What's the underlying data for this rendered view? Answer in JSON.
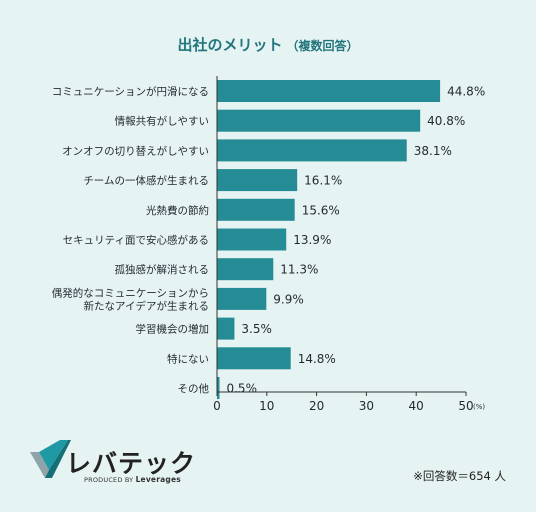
{
  "title_main": "出社のメリット",
  "title_sub": "（複数回答）",
  "footnote": "※回答数＝654 人",
  "logo": {
    "wordmark": "レバテック",
    "tagline_prefix": "PRODUCED BY ",
    "tagline_brand": "Leverages"
  },
  "colors": {
    "bar": "#258b95",
    "title": "#21757c",
    "background": "#e6f3f3"
  },
  "chart_data": {
    "type": "bar",
    "orientation": "horizontal",
    "title": "出社のメリット（複数回答）",
    "categories": [
      "コミュニケーションが円滑になる",
      "情報共有がしやすい",
      "オンオフの切り替えがしやすい",
      "チームの一体感が生まれる",
      "光熱費の節約",
      "セキュリティ面で安心感がある",
      "孤独感が解消される",
      "偶発的なコミュニケーションから\n新たなアイデアが生まれる",
      "学習機会の増加",
      "特にない",
      "その他"
    ],
    "values": [
      44.8,
      40.8,
      38.1,
      16.1,
      15.6,
      13.9,
      11.3,
      9.9,
      3.5,
      14.8,
      0.5
    ],
    "value_labels": [
      "44.8%",
      "40.8%",
      "38.1%",
      "16.1%",
      "15.6%",
      "13.9%",
      "11.3%",
      "9.9%",
      "3.5%",
      "14.8%",
      "0.5%"
    ],
    "xlim": [
      0,
      50
    ],
    "xticks": [
      0,
      10,
      20,
      30,
      40,
      50
    ],
    "xtick_labels": [
      "0",
      "10",
      "20",
      "30",
      "40",
      "50"
    ],
    "x_unit": "(%)",
    "grid": false
  }
}
